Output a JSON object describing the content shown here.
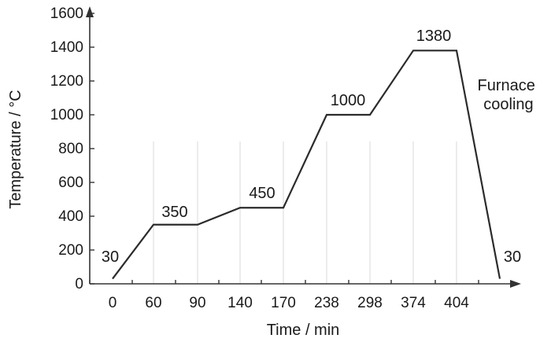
{
  "chart_data": {
    "type": "line",
    "xlabel": "Time / min",
    "ylabel": "Temperature / °C",
    "ylim": [
      0,
      1600
    ],
    "yticks": [
      0,
      200,
      400,
      600,
      800,
      1000,
      1200,
      1400,
      1600
    ],
    "xticks": [
      "0",
      "60",
      "90",
      "140",
      "170",
      "238",
      "298",
      "374",
      "404"
    ],
    "grid": "vertical guide lines at tick positions",
    "series": [
      {
        "points": [
          {
            "x": "0",
            "y": 30
          },
          {
            "x": "60",
            "y": 350
          },
          {
            "x": "90",
            "y": 350
          },
          {
            "x": "140",
            "y": 450
          },
          {
            "x": "170",
            "y": 450
          },
          {
            "x": "238",
            "y": 1000
          },
          {
            "x": "298",
            "y": 1000
          },
          {
            "x": "374",
            "y": 1380
          },
          {
            "x": "404",
            "y": 1380
          },
          {
            "x": "end",
            "y": 30
          }
        ]
      }
    ],
    "data_labels": [
      "30",
      "350",
      "450",
      "1000",
      "1380",
      "30"
    ],
    "annotation": [
      "Furnace",
      "cooling"
    ],
    "colors": {
      "line": "#2b2b2b",
      "axis": "#333333",
      "guide": "#d9d9d9"
    }
  }
}
